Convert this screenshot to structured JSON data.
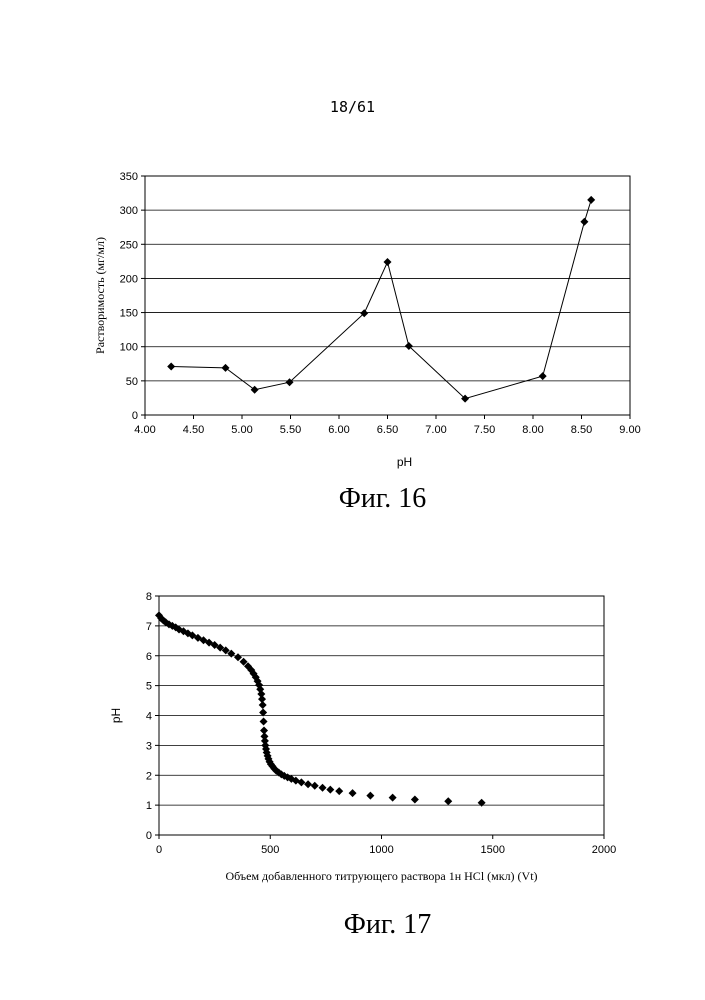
{
  "page": {
    "number": "18/61"
  },
  "figures": [
    {
      "caption": "Фиг. 16"
    },
    {
      "caption": "Фиг. 17"
    }
  ],
  "chart_data": [
    {
      "type": "line",
      "title": "",
      "xlabel": "pH",
      "ylabel": "Растворимость (мг/мл)",
      "xlim": [
        4.0,
        9.0
      ],
      "ylim": [
        0,
        350
      ],
      "x_ticks": [
        "4.00",
        "4.50",
        "5.00",
        "5.50",
        "6.00",
        "6.50",
        "7.00",
        "7.50",
        "8.00",
        "8.50",
        "9.00"
      ],
      "y_ticks": [
        "0",
        "50",
        "100",
        "150",
        "200",
        "250",
        "300",
        "350"
      ],
      "grid": "horizontal",
      "markers": "diamond",
      "series": [
        {
          "x": [
            4.27,
            4.83,
            5.13,
            5.49,
            6.26,
            6.5,
            6.72,
            7.3,
            8.1,
            8.53,
            8.6
          ],
          "y": [
            71,
            69,
            37,
            48,
            149,
            224,
            101,
            24,
            57,
            283,
            315
          ]
        }
      ]
    },
    {
      "type": "scatter",
      "title": "",
      "xlabel": "Объем добавленного титрующего раствора 1н HCl (мкл) (Vt)",
      "ylabel": "pH",
      "xlim": [
        0,
        2000
      ],
      "ylim": [
        0,
        8
      ],
      "x_ticks": [
        "0",
        "500",
        "1000",
        "1500",
        "2000"
      ],
      "y_ticks": [
        "0",
        "1",
        "2",
        "3",
        "4",
        "5",
        "6",
        "7",
        "8"
      ],
      "grid": "horizontal",
      "markers": "diamond",
      "series": [
        {
          "x": [
            0,
            10,
            20,
            30,
            45,
            60,
            75,
            90,
            110,
            130,
            150,
            175,
            200,
            225,
            250,
            275,
            300,
            325,
            355,
            380,
            400,
            415,
            425,
            435,
            443,
            450,
            455,
            460,
            463,
            466,
            468,
            470,
            472,
            474,
            476,
            478,
            481,
            484,
            488,
            492,
            497,
            503,
            510,
            518,
            527,
            538,
            550,
            563,
            578,
            595,
            615,
            640,
            670,
            700,
            735,
            770,
            810,
            870,
            950,
            1050,
            1150,
            1300,
            1450
          ],
          "y": [
            7.35,
            7.25,
            7.18,
            7.12,
            7.05,
            7.0,
            6.95,
            6.88,
            6.82,
            6.75,
            6.68,
            6.6,
            6.52,
            6.44,
            6.36,
            6.27,
            6.18,
            6.07,
            5.95,
            5.8,
            5.65,
            5.52,
            5.4,
            5.28,
            5.15,
            5.02,
            4.88,
            4.72,
            4.55,
            4.35,
            4.1,
            3.8,
            3.5,
            3.3,
            3.15,
            3.0,
            2.88,
            2.76,
            2.65,
            2.55,
            2.45,
            2.37,
            2.3,
            2.22,
            2.15,
            2.09,
            2.03,
            1.98,
            1.93,
            1.88,
            1.82,
            1.76,
            1.7,
            1.65,
            1.58,
            1.52,
            1.47,
            1.4,
            1.32,
            1.25,
            1.19,
            1.13,
            1.08
          ]
        }
      ]
    }
  ]
}
